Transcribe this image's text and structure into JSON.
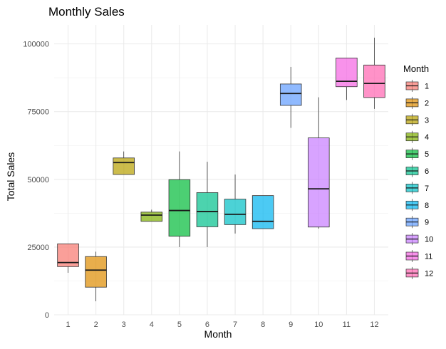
{
  "chart_data": {
    "type": "boxplot",
    "title": "Monthly Sales",
    "xlabel": "Month",
    "ylabel": "Total Sales",
    "ylim": [
      0,
      107000
    ],
    "yticks": [
      0,
      25000,
      50000,
      75000,
      100000
    ],
    "ytick_labels": [
      "0",
      "25000",
      "50000",
      "75000",
      "100000"
    ],
    "grid": true,
    "legend": {
      "title": "Month",
      "placement": "right"
    },
    "categories": [
      "1",
      "2",
      "3",
      "4",
      "5",
      "6",
      "7",
      "8",
      "9",
      "10",
      "11",
      "12"
    ],
    "colors": [
      "#F8766D",
      "#DE8C00",
      "#B79F00",
      "#7CAE00",
      "#00BA38",
      "#00C08B",
      "#00BFC4",
      "#00B4F0",
      "#619CFF",
      "#C77CFF",
      "#F564E3",
      "#FF64B0"
    ],
    "boxes": [
      {
        "month": "1",
        "min": 15500,
        "q1": 17800,
        "median": 19300,
        "q3": 26200,
        "max": 26200
      },
      {
        "month": "2",
        "min": 5000,
        "q1": 10200,
        "median": 16500,
        "q3": 21500,
        "max": 23300
      },
      {
        "month": "3",
        "min": 51800,
        "q1": 51800,
        "median": 56200,
        "q3": 57900,
        "max": 60300
      },
      {
        "month": "4",
        "min": 34500,
        "q1": 34500,
        "median": 36800,
        "q3": 37900,
        "max": 38800
      },
      {
        "month": "5",
        "min": 25000,
        "q1": 29000,
        "median": 38500,
        "q3": 49900,
        "max": 60300
      },
      {
        "month": "6",
        "min": 25000,
        "q1": 32500,
        "median": 38100,
        "q3": 45100,
        "max": 56500
      },
      {
        "month": "7",
        "min": 30000,
        "q1": 33300,
        "median": 37100,
        "q3": 42700,
        "max": 51800
      },
      {
        "month": "8",
        "min": 31800,
        "q1": 31800,
        "median": 34500,
        "q3": 44000,
        "max": 44000
      },
      {
        "month": "9",
        "min": 69000,
        "q1": 77300,
        "median": 81700,
        "q3": 85200,
        "max": 91500
      },
      {
        "month": "10",
        "min": 31800,
        "q1": 32400,
        "median": 46500,
        "q3": 65300,
        "max": 80300
      },
      {
        "month": "11",
        "min": 79300,
        "q1": 84200,
        "median": 86200,
        "q3": 94800,
        "max": 94800
      },
      {
        "month": "12",
        "min": 76000,
        "q1": 80200,
        "median": 85400,
        "q3": 92200,
        "max": 102300
      }
    ]
  }
}
